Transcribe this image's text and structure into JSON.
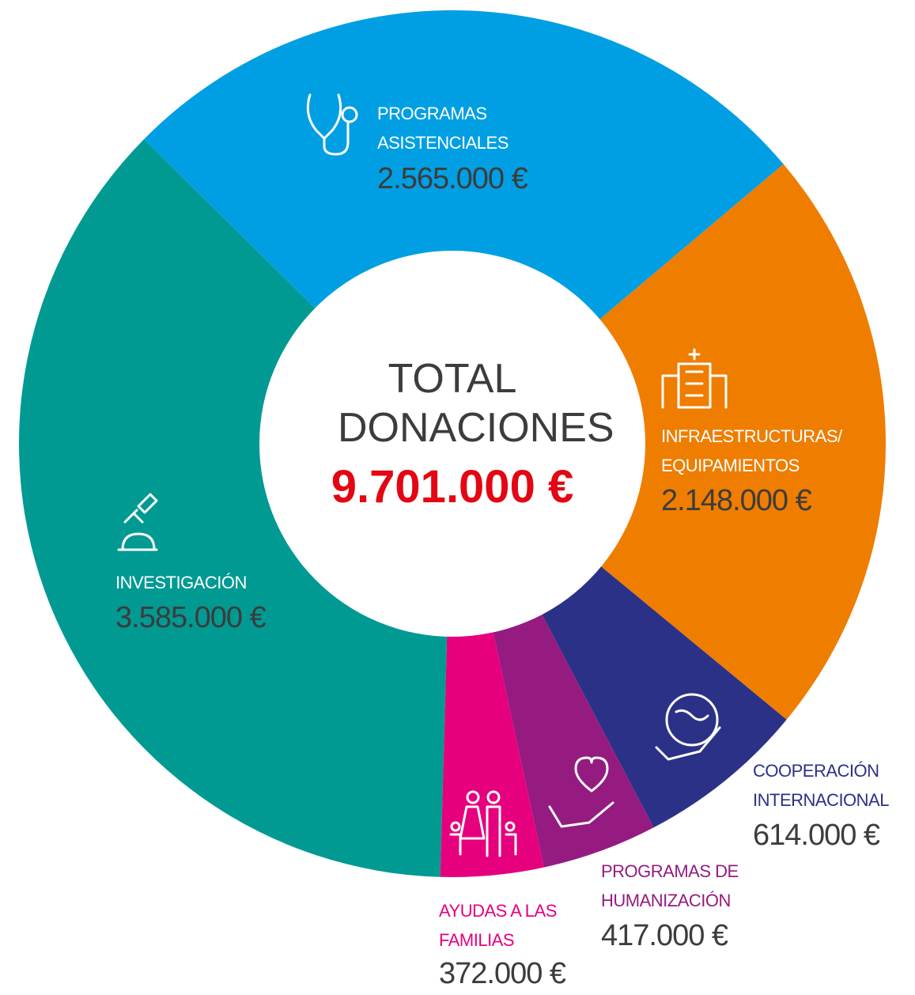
{
  "chart_data": {
    "type": "donut",
    "center_title": "TOTAL DONACIONES",
    "center_value": "9.701.000 €",
    "categories": [
      "INVESTIGACIÓN",
      "PROGRAMAS ASISTENCIALES",
      "INFRAESTRUCTURAS/ EQUIPAMIENTOS",
      "COOPERACIÓN INTERNACIONAL",
      "PROGRAMAS DE HUMANIZACIÓN",
      "AYUDAS A LAS FAMILIAS"
    ],
    "values": [
      3585000,
      2565000,
      2148000,
      614000,
      417000,
      372000
    ],
    "value_labels": [
      "3.585.000 €",
      "2.565.000 €",
      "2.148.000 €",
      "614.000 €",
      "417.000 €",
      "372.000 €"
    ],
    "colors": [
      "#009a93",
      "#009fe3",
      "#ef7d00",
      "#2b3187",
      "#951b81",
      "#e6007e"
    ]
  }
}
